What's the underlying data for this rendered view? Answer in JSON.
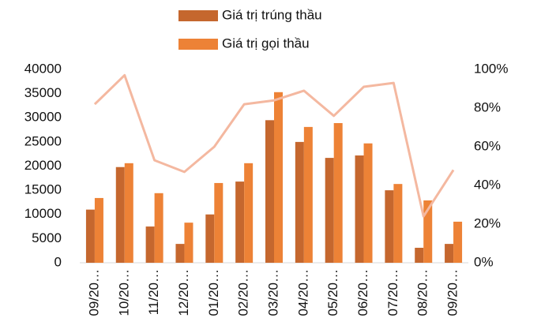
{
  "chart_data": {
    "type": "bar",
    "categories": [
      "09/20…",
      "10/20…",
      "11/20…",
      "12/20…",
      "01/20…",
      "02/20…",
      "03/20…",
      "04/20…",
      "05/20…",
      "06/20…",
      "07/20…",
      "08/20…",
      "09/20…"
    ],
    "series": [
      {
        "name": "Giá trị trúng thầu",
        "color": "#c5672e",
        "values": [
          11000,
          19800,
          7500,
          3900,
          10000,
          16800,
          29500,
          25000,
          21700,
          22200,
          15000,
          3100,
          3900
        ]
      },
      {
        "name": "Giá trị gọi thầu",
        "color": "#ed8236",
        "values": [
          13400,
          20600,
          14400,
          8300,
          16500,
          20600,
          35300,
          28100,
          28900,
          24700,
          16300,
          12900,
          8500
        ]
      },
      {
        "type": "line",
        "axis": "y2",
        "color": "#f4b8a0",
        "values": [
          82,
          97,
          53,
          47,
          60,
          82,
          84,
          89,
          76,
          91,
          93,
          24,
          48
        ]
      }
    ],
    "ylim": [
      0,
      40000
    ],
    "yticks": [
      0,
      5000,
      10000,
      15000,
      20000,
      25000,
      30000,
      35000,
      40000
    ],
    "y2lim": [
      0,
      100
    ],
    "y2ticks": [
      {
        "value": 0,
        "label": "0%"
      },
      {
        "value": 20,
        "label": "20%"
      },
      {
        "value": 40,
        "label": "40%"
      },
      {
        "value": 60,
        "label": "60%"
      },
      {
        "value": 80,
        "label": "80%"
      },
      {
        "value": 100,
        "label": "100%"
      }
    ]
  }
}
